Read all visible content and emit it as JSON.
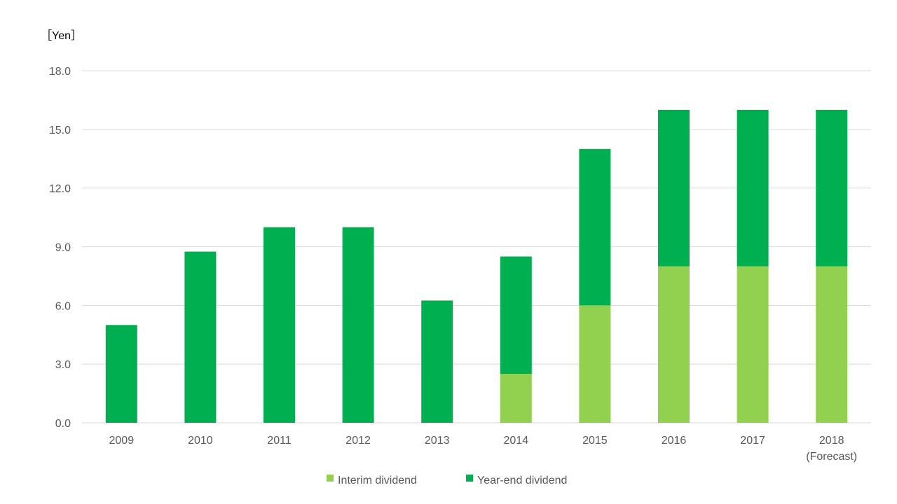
{
  "chart_data": {
    "type": "bar",
    "stacked": true,
    "y_unit_label": "［Yen］",
    "categories": [
      "2009",
      "2010",
      "2011",
      "2012",
      "2013",
      "2014",
      "2015",
      "2016",
      "2017",
      "2018"
    ],
    "category_sublabels": [
      "",
      "",
      "",
      "",
      "",
      "",
      "",
      "",
      "",
      "(Forecast)"
    ],
    "ylim": [
      0,
      18
    ],
    "yticks": [
      "0.0",
      "3.0",
      "6.0",
      "9.0",
      "12.0",
      "15.0",
      "18.0"
    ],
    "grid": true,
    "legend_position": "bottom",
    "series": [
      {
        "name": "Interim dividend",
        "color": "#92d050",
        "values": [
          0,
          0,
          0,
          0,
          0,
          2.5,
          6,
          8,
          8,
          8
        ]
      },
      {
        "name": "Year-end dividend",
        "color": "#00b050",
        "values": [
          5,
          8.75,
          10,
          10,
          6.25,
          6,
          8,
          8,
          8,
          8
        ]
      }
    ]
  }
}
